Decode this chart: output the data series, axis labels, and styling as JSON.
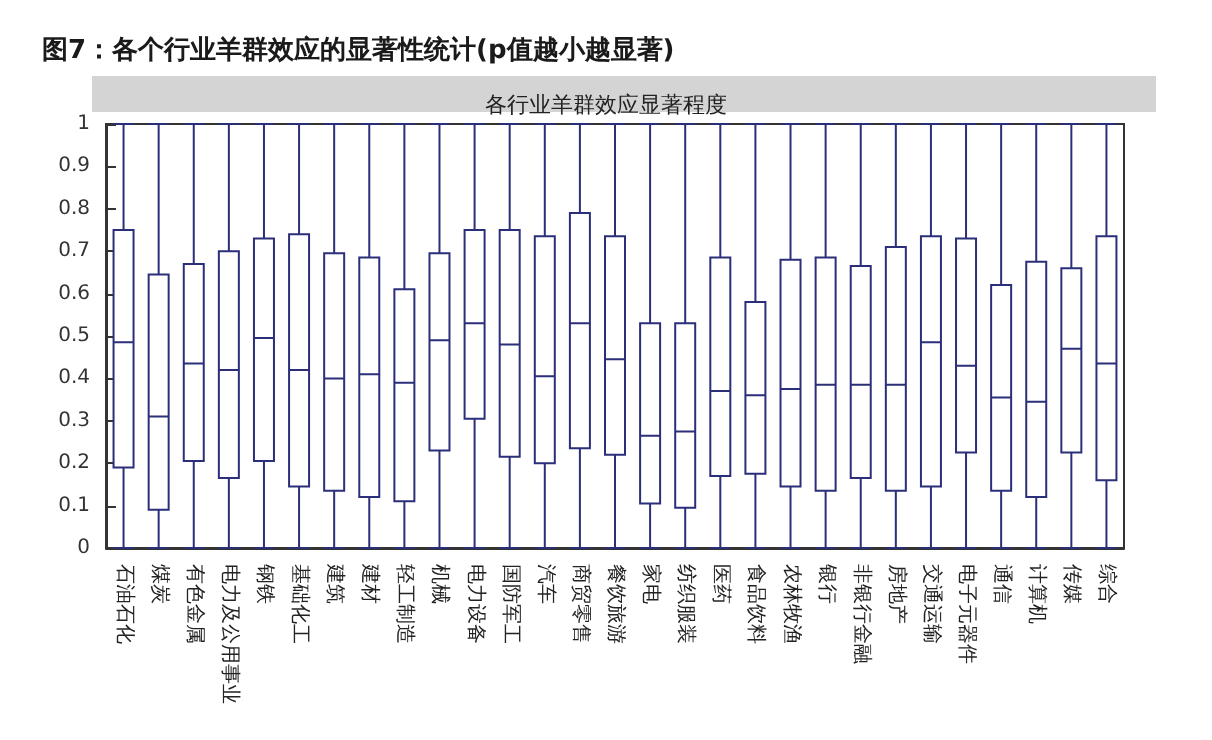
{
  "chart_data": {
    "type": "box",
    "title": "图7：各个行业羊群效应的显著性统计(p值越小越显著)",
    "subtitle": "各行业羊群效应显著程度",
    "categories": [
      "石油石化",
      "煤炭",
      "有色金属",
      "电力及公用事业",
      "钢铁",
      "基础化工",
      "建筑",
      "建材",
      "轻工制造",
      "机械",
      "电力设备",
      "国防军工",
      "汽车",
      "商贸零售",
      "餐饮旅游",
      "家电",
      "纺织服装",
      "医药",
      "食品饮料",
      "农林牧渔",
      "银行",
      "非银行金融",
      "房地产",
      "交通运输",
      "电子元器件",
      "通信",
      "计算机",
      "传媒",
      "综合"
    ],
    "color": "#2b2f7a",
    "boxes": [
      {
        "low": 0,
        "q1": 0.19,
        "median": 0.485,
        "q3": 0.75,
        "high": 1
      },
      {
        "low": 0,
        "q1": 0.09,
        "median": 0.31,
        "q3": 0.645,
        "high": 1
      },
      {
        "low": 0,
        "q1": 0.205,
        "median": 0.435,
        "q3": 0.67,
        "high": 1
      },
      {
        "low": 0,
        "q1": 0.165,
        "median": 0.42,
        "q3": 0.7,
        "high": 1
      },
      {
        "low": 0,
        "q1": 0.205,
        "median": 0.495,
        "q3": 0.73,
        "high": 1
      },
      {
        "low": 0,
        "q1": 0.145,
        "median": 0.42,
        "q3": 0.74,
        "high": 1
      },
      {
        "low": 0,
        "q1": 0.135,
        "median": 0.4,
        "q3": 0.695,
        "high": 1
      },
      {
        "low": 0,
        "q1": 0.12,
        "median": 0.41,
        "q3": 0.685,
        "high": 1
      },
      {
        "low": 0,
        "q1": 0.11,
        "median": 0.39,
        "q3": 0.61,
        "high": 1
      },
      {
        "low": 0,
        "q1": 0.23,
        "median": 0.49,
        "q3": 0.695,
        "high": 1
      },
      {
        "low": 0,
        "q1": 0.305,
        "median": 0.53,
        "q3": 0.75,
        "high": 1
      },
      {
        "low": 0,
        "q1": 0.215,
        "median": 0.48,
        "q3": 0.75,
        "high": 1
      },
      {
        "low": 0,
        "q1": 0.2,
        "median": 0.405,
        "q3": 0.735,
        "high": 1
      },
      {
        "low": 0,
        "q1": 0.235,
        "median": 0.53,
        "q3": 0.79,
        "high": 1
      },
      {
        "low": 0,
        "q1": 0.22,
        "median": 0.445,
        "q3": 0.735,
        "high": 1
      },
      {
        "low": 0,
        "q1": 0.105,
        "median": 0.265,
        "q3": 0.53,
        "high": 1
      },
      {
        "low": 0,
        "q1": 0.095,
        "median": 0.275,
        "q3": 0.53,
        "high": 1
      },
      {
        "low": 0,
        "q1": 0.17,
        "median": 0.37,
        "q3": 0.685,
        "high": 1
      },
      {
        "low": 0,
        "q1": 0.175,
        "median": 0.36,
        "q3": 0.58,
        "high": 1
      },
      {
        "low": 0,
        "q1": 0.145,
        "median": 0.375,
        "q3": 0.68,
        "high": 1
      },
      {
        "low": 0,
        "q1": 0.135,
        "median": 0.385,
        "q3": 0.685,
        "high": 1
      },
      {
        "low": 0,
        "q1": 0.165,
        "median": 0.385,
        "q3": 0.665,
        "high": 1
      },
      {
        "low": 0,
        "q1": 0.135,
        "median": 0.385,
        "q3": 0.71,
        "high": 1
      },
      {
        "low": 0,
        "q1": 0.145,
        "median": 0.485,
        "q3": 0.735,
        "high": 1
      },
      {
        "low": 0,
        "q1": 0.225,
        "median": 0.43,
        "q3": 0.73,
        "high": 1
      },
      {
        "low": 0,
        "q1": 0.135,
        "median": 0.355,
        "q3": 0.62,
        "high": 1
      },
      {
        "low": 0,
        "q1": 0.12,
        "median": 0.345,
        "q3": 0.675,
        "high": 1
      },
      {
        "low": 0,
        "q1": 0.225,
        "median": 0.47,
        "q3": 0.66,
        "high": 1
      },
      {
        "low": 0,
        "q1": 0.16,
        "median": 0.435,
        "q3": 0.735,
        "high": 1
      }
    ],
    "ylim": [
      0,
      1
    ],
    "yticks": [
      0,
      0.1,
      0.2,
      0.3,
      0.4,
      0.5,
      0.6,
      0.7,
      0.8,
      0.9,
      1
    ]
  }
}
